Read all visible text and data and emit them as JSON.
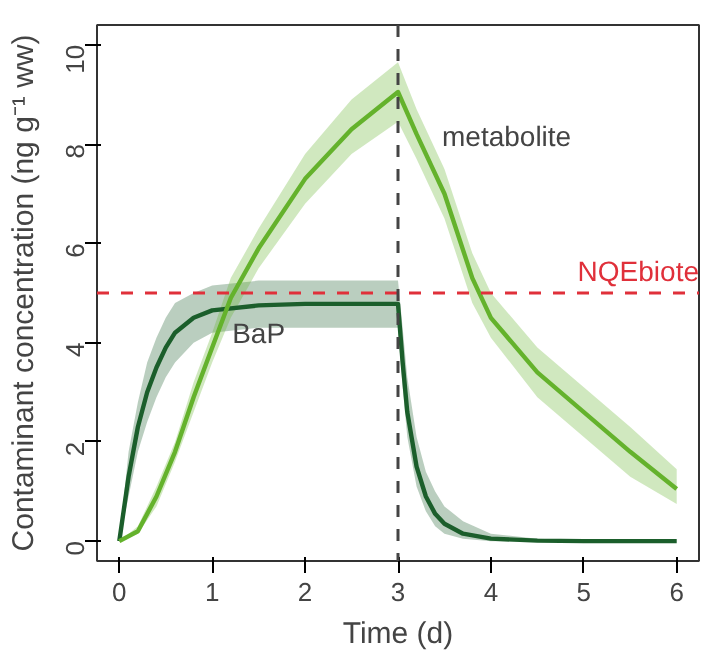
{
  "chart_data": {
    "type": "line",
    "xlabel": "Time (d)",
    "ylabel": "Contaminant concentration (ng g⁻¹ ww)",
    "xlim": [
      -0.24,
      6.24
    ],
    "ylim": [
      -0.4,
      10.4
    ],
    "xticks": [
      0,
      1,
      2,
      3,
      4,
      5,
      6
    ],
    "yticks": [
      0,
      2,
      4,
      6,
      8,
      10
    ],
    "grid": false,
    "legend": false,
    "line_style": "solid",
    "marker": "none",
    "series": [
      {
        "name": "BaP",
        "color": "#1b5e2b",
        "x": [
          0,
          0.1,
          0.2,
          0.3,
          0.4,
          0.5,
          0.6,
          0.8,
          1.0,
          1.5,
          2.0,
          2.5,
          3.0,
          3.05,
          3.1,
          3.2,
          3.3,
          3.4,
          3.5,
          3.7,
          4.0,
          4.5,
          5.0,
          6.0
        ],
        "values": [
          0,
          1.3,
          2.3,
          3.0,
          3.5,
          3.9,
          4.2,
          4.5,
          4.65,
          4.75,
          4.78,
          4.78,
          4.78,
          3.6,
          2.6,
          1.5,
          0.9,
          0.55,
          0.35,
          0.15,
          0.05,
          0.01,
          0,
          0
        ],
        "lower": [
          0,
          0.9,
          1.8,
          2.4,
          2.9,
          3.3,
          3.6,
          4.0,
          4.2,
          4.3,
          4.3,
          4.3,
          4.3,
          3.1,
          2.1,
          1.1,
          0.6,
          0.3,
          0.15,
          0.05,
          0,
          0,
          0,
          0
        ],
        "upper": [
          0,
          1.8,
          2.8,
          3.6,
          4.1,
          4.5,
          4.8,
          5.0,
          5.15,
          5.25,
          5.25,
          5.25,
          5.25,
          4.3,
          3.3,
          2.1,
          1.4,
          1.0,
          0.7,
          0.4,
          0.15,
          0.05,
          0.02,
          0.01
        ]
      },
      {
        "name": "metabolite",
        "color": "#64b22c",
        "x": [
          0,
          0.2,
          0.4,
          0.6,
          0.8,
          1.0,
          1.2,
          1.5,
          2.0,
          2.5,
          3.0,
          3.2,
          3.5,
          3.8,
          4.0,
          4.5,
          5.0,
          5.5,
          6.0
        ],
        "values": [
          0,
          0.2,
          0.9,
          1.8,
          2.9,
          3.9,
          4.9,
          5.9,
          7.3,
          8.3,
          9.05,
          8.2,
          7.0,
          5.3,
          4.5,
          3.4,
          2.6,
          1.8,
          1.05
        ],
        "lower": [
          0,
          0.15,
          0.7,
          1.6,
          2.6,
          3.6,
          4.5,
          5.5,
          6.8,
          7.8,
          8.45,
          7.7,
          6.5,
          4.8,
          4.1,
          2.9,
          2.1,
          1.3,
          0.75
        ],
        "upper": [
          0,
          0.3,
          1.1,
          2.0,
          3.2,
          4.2,
          5.3,
          6.3,
          7.8,
          8.9,
          9.65,
          8.7,
          7.5,
          5.8,
          5.0,
          3.9,
          3.1,
          2.3,
          1.45
        ]
      }
    ],
    "ref_lines": [
      {
        "axis": "y",
        "value": 5,
        "label": "NQEbiote",
        "color": "#e0303a",
        "line_style": "dashed"
      },
      {
        "axis": "x",
        "value": 3,
        "color": "#444444",
        "line_style": "dashed"
      }
    ]
  }
}
